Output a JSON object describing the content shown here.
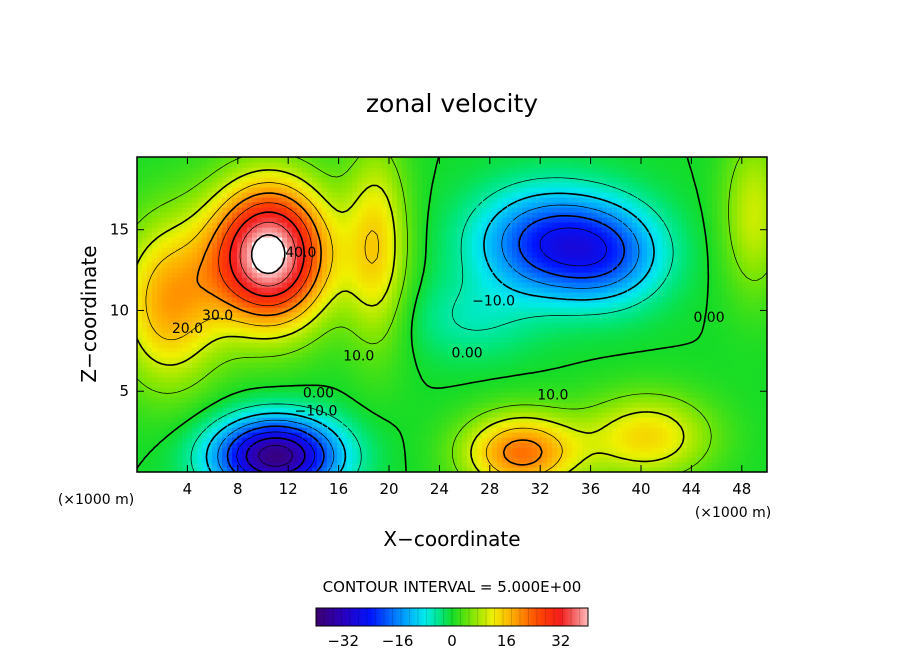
{
  "chart_data": {
    "type": "heatmap",
    "title": "zonal velocity",
    "xlabel": "X−coordinate",
    "ylabel": "Z−coordinate",
    "x_unit": "(×1000 m)",
    "y_unit": "(×1000 m)",
    "xlim": [
      0,
      50
    ],
    "ylim": [
      0,
      19.5
    ],
    "x_ticks": [
      4,
      8,
      12,
      16,
      20,
      24,
      28,
      32,
      36,
      40,
      44,
      48
    ],
    "x_tick_labels": [
      "4",
      "8",
      "12",
      "16",
      "20",
      "24",
      "28",
      "32",
      "36",
      "40",
      "44",
      "48"
    ],
    "y_ticks": [
      5,
      10,
      15
    ],
    "y_tick_labels": [
      "5",
      "10",
      "15"
    ],
    "contour_interval_text": "CONTOUR INTERVAL = 5.000E+00",
    "contour_interval": 5,
    "colorbar": {
      "range": [
        -40,
        40
      ],
      "ticks": [
        -32,
        -16,
        0,
        16,
        32
      ],
      "tick_labels": [
        "−32",
        "−16",
        "0",
        "16",
        "32"
      ]
    },
    "contour_labels": [
      {
        "text": "40.0",
        "x": 13,
        "y": 13.3
      },
      {
        "text": "30.0",
        "x": 6.4,
        "y": 9.4
      },
      {
        "text": "20.0",
        "x": 4.0,
        "y": 8.6
      },
      {
        "text": "10.0",
        "x": 17.6,
        "y": 6.9
      },
      {
        "text": "0.00",
        "x": 14.4,
        "y": 4.6
      },
      {
        "text": "−10.0",
        "x": 14.2,
        "y": 3.5
      },
      {
        "text": "−10.0",
        "x": 28.3,
        "y": 10.3
      },
      {
        "text": "0.00",
        "x": 26.2,
        "y": 7.1
      },
      {
        "text": "10.0",
        "x": 33.0,
        "y": 4.5
      },
      {
        "text": "0.00",
        "x": 45.4,
        "y": 9.3
      }
    ],
    "field_features": [
      {
        "kind": "jet",
        "value": 43,
        "x": 10.5,
        "y": 13.5,
        "sx": 4.6,
        "sz": 4.3
      },
      {
        "kind": "jet",
        "value": 18,
        "x": 2.5,
        "y": 10.5,
        "sx": 4,
        "sz": 5
      },
      {
        "kind": "jet",
        "value": -38,
        "x": 11,
        "y": 1.0,
        "sx": 4.8,
        "sz": 2.3
      },
      {
        "kind": "jet",
        "value": -22,
        "x": 32.5,
        "y": 14.2,
        "sx": 5.5,
        "sz": 3.2
      },
      {
        "kind": "jet",
        "value": -15,
        "x": 37.5,
        "y": 13.5,
        "sx": 4.5,
        "sz": 3
      },
      {
        "kind": "jet",
        "value": 22,
        "x": 30.5,
        "y": 1.2,
        "sx": 4.5,
        "sz": 2.4
      },
      {
        "kind": "jet",
        "value": 14,
        "x": 40.5,
        "y": 2.2,
        "sx": 5,
        "sz": 2.6
      },
      {
        "kind": "jet",
        "value": 10,
        "x": 49,
        "y": 16,
        "sx": 2.5,
        "sz": 5
      },
      {
        "kind": "jet",
        "value": 14,
        "x": 19,
        "y": 14,
        "sx": 2.5,
        "sz": 6
      },
      {
        "kind": "jet",
        "value": -5,
        "x": 26.5,
        "y": 9.5,
        "sx": 5,
        "sz": 2.5
      }
    ]
  }
}
